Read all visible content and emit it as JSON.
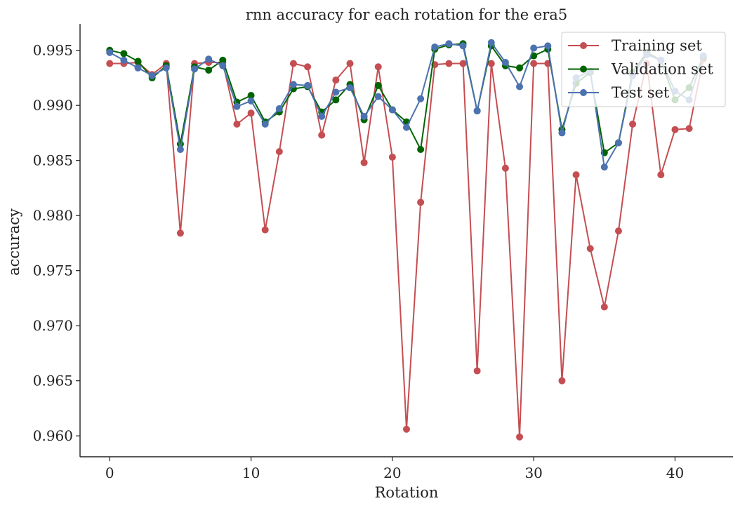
{
  "chart_data": {
    "type": "line",
    "title": "rnn accuracy for each rotation for the era5",
    "xlabel": "Rotation",
    "ylabel": "accuracy",
    "xlim": [
      -2.1,
      44.1
    ],
    "ylim": [
      0.9581,
      0.9974
    ],
    "xticks": [
      0,
      10,
      20,
      30,
      40
    ],
    "yticks": [
      0.96,
      0.965,
      0.97,
      0.975,
      0.98,
      0.985,
      0.99,
      0.995
    ],
    "ytick_labels": [
      "0.960",
      "0.965",
      "0.970",
      "0.975",
      "0.980",
      "0.985",
      "0.990",
      "0.995"
    ],
    "legend_position": "top-right",
    "grid": false,
    "x": [
      0,
      1,
      2,
      3,
      4,
      5,
      6,
      7,
      8,
      9,
      10,
      11,
      12,
      13,
      14,
      15,
      16,
      17,
      18,
      19,
      20,
      21,
      22,
      23,
      24,
      25,
      26,
      27,
      28,
      29,
      30,
      31,
      32,
      33,
      34,
      35,
      36,
      37,
      38,
      39,
      40,
      41,
      42
    ],
    "series": [
      {
        "name": "Training set",
        "color": "#c44e52",
        "values": [
          0.9938,
          0.9938,
          0.9939,
          0.9928,
          0.9938,
          0.9784,
          0.9938,
          0.9939,
          0.9939,
          0.9883,
          0.9893,
          0.9787,
          0.9858,
          0.9938,
          0.9935,
          0.9873,
          0.9923,
          0.9938,
          0.9848,
          0.9935,
          0.9853,
          0.9606,
          0.9812,
          0.9937,
          0.9938,
          0.9938,
          0.9659,
          0.9938,
          0.9843,
          0.9599,
          0.9938,
          0.9938,
          0.965,
          0.9837,
          0.977,
          0.9717,
          0.9786,
          0.9883,
          0.9938,
          0.9837,
          0.9878,
          0.9879,
          0.9942
        ]
      },
      {
        "name": "Validation set",
        "color": "#006400",
        "values": [
          0.995,
          0.9947,
          0.994,
          0.9925,
          0.9936,
          0.9865,
          0.9935,
          0.9932,
          0.9941,
          0.9903,
          0.9909,
          0.9885,
          0.9894,
          0.9915,
          0.9917,
          0.9894,
          0.9905,
          0.9919,
          0.9887,
          0.9918,
          0.9896,
          0.9885,
          0.986,
          0.9951,
          0.9955,
          0.9956,
          0.9895,
          0.9954,
          0.9936,
          0.9934,
          0.9945,
          0.9951,
          0.9878,
          0.992,
          0.993,
          0.9857,
          0.9866,
          0.993,
          0.9948,
          0.9941,
          0.9905,
          0.9916,
          0.9944
        ]
      },
      {
        "name": "Test set",
        "color": "#4c72b0",
        "values": [
          0.9948,
          0.9941,
          0.9934,
          0.9927,
          0.9934,
          0.986,
          0.9933,
          0.9942,
          0.9936,
          0.9899,
          0.9904,
          0.9883,
          0.9897,
          0.9919,
          0.9918,
          0.989,
          0.9912,
          0.9916,
          0.989,
          0.9908,
          0.9896,
          0.988,
          0.9906,
          0.9953,
          0.9956,
          0.9954,
          0.9895,
          0.9957,
          0.9939,
          0.9917,
          0.9952,
          0.9954,
          0.9875,
          0.9925,
          0.9931,
          0.9844,
          0.9866,
          0.9927,
          0.9946,
          0.9941,
          0.9913,
          0.9905,
          0.9945
        ]
      }
    ]
  }
}
